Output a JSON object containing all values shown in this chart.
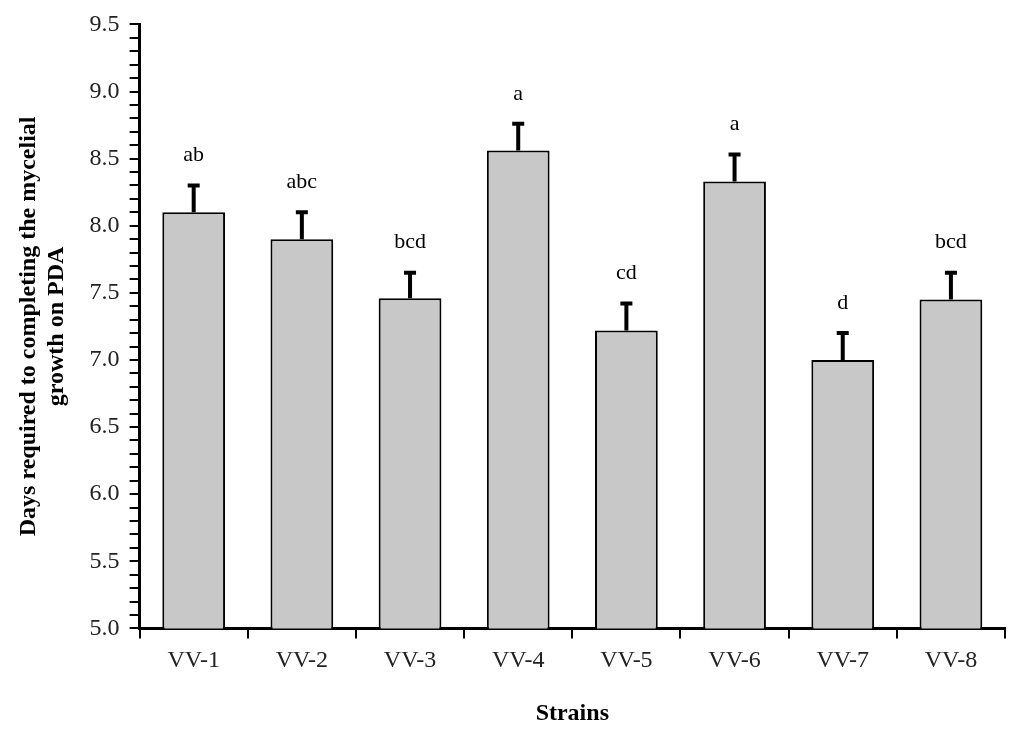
{
  "chart_data": {
    "type": "bar",
    "xlabel": "Strains",
    "ylabel": "Days required to completing the mycelial growth on PDA",
    "categories": [
      "VV-1",
      "VV-2",
      "VV-3",
      "VV-4",
      "VV-5",
      "VV-6",
      "VV-7",
      "VV-8"
    ],
    "values": [
      8.1,
      7.9,
      7.46,
      8.56,
      7.22,
      8.33,
      7.0,
      7.45
    ],
    "errors": [
      [
        8.1,
        8.3
      ],
      [
        7.9,
        8.1
      ],
      [
        7.46,
        7.65
      ],
      [
        8.56,
        8.76
      ],
      [
        7.22,
        7.42
      ],
      [
        8.33,
        8.53
      ],
      [
        7.0,
        7.2
      ],
      [
        7.45,
        7.65
      ]
    ],
    "color": "#c8c8c8",
    "ylim": [
      5.0,
      9.5
    ],
    "yticks": [
      {
        "value": 5.0,
        "label": "5.0"
      },
      {
        "value": 5.1,
        "label": null
      },
      {
        "value": 5.2,
        "label": null
      },
      {
        "value": 5.3,
        "label": null
      },
      {
        "value": 5.4,
        "label": null
      },
      {
        "value": 5.5,
        "label": "5.5"
      },
      {
        "value": 5.6,
        "label": null
      },
      {
        "value": 5.7,
        "label": null
      },
      {
        "value": 5.8,
        "label": null
      },
      {
        "value": 5.9,
        "label": null
      },
      {
        "value": 6.0,
        "label": "6.0"
      },
      {
        "value": 6.1,
        "label": null
      },
      {
        "value": 6.2,
        "label": null
      },
      {
        "value": 6.3,
        "label": null
      },
      {
        "value": 6.4,
        "label": null
      },
      {
        "value": 6.5,
        "label": "6.5"
      },
      {
        "value": 6.6,
        "label": null
      },
      {
        "value": 6.7,
        "label": null
      },
      {
        "value": 6.8,
        "label": null
      },
      {
        "value": 6.9,
        "label": null
      },
      {
        "value": 7.0,
        "label": "7.0"
      },
      {
        "value": 7.1,
        "label": null
      },
      {
        "value": 7.2,
        "label": null
      },
      {
        "value": 7.3,
        "label": null
      },
      {
        "value": 7.4,
        "label": null
      },
      {
        "value": 7.5,
        "label": "7.5"
      },
      {
        "value": 7.6,
        "label": null
      },
      {
        "value": 7.7,
        "label": null
      },
      {
        "value": 7.8,
        "label": null
      },
      {
        "value": 7.9,
        "label": null
      },
      {
        "value": 8.0,
        "label": "8.0"
      },
      {
        "value": 8.1,
        "label": null
      },
      {
        "value": 8.2,
        "label": null
      },
      {
        "value": 8.3,
        "label": null
      },
      {
        "value": 8.4,
        "label": null
      },
      {
        "value": 8.5,
        "label": "8.5"
      },
      {
        "value": 8.6,
        "label": null
      },
      {
        "value": 8.7,
        "label": null
      },
      {
        "value": 8.8,
        "label": null
      },
      {
        "value": 8.9,
        "label": null
      },
      {
        "value": 9.0,
        "label": "9.0"
      },
      {
        "value": 9.1,
        "label": null
      },
      {
        "value": 9.2,
        "label": null
      },
      {
        "value": 9.3,
        "label": null
      },
      {
        "value": 9.4,
        "label": null
      },
      {
        "value": 9.5,
        "label": "9.5"
      }
    ],
    "annotations": [
      "ab",
      "abc",
      "bcd",
      "a",
      "cd",
      "a",
      "d",
      "bcd"
    ],
    "grid": false,
    "legend": false
  }
}
